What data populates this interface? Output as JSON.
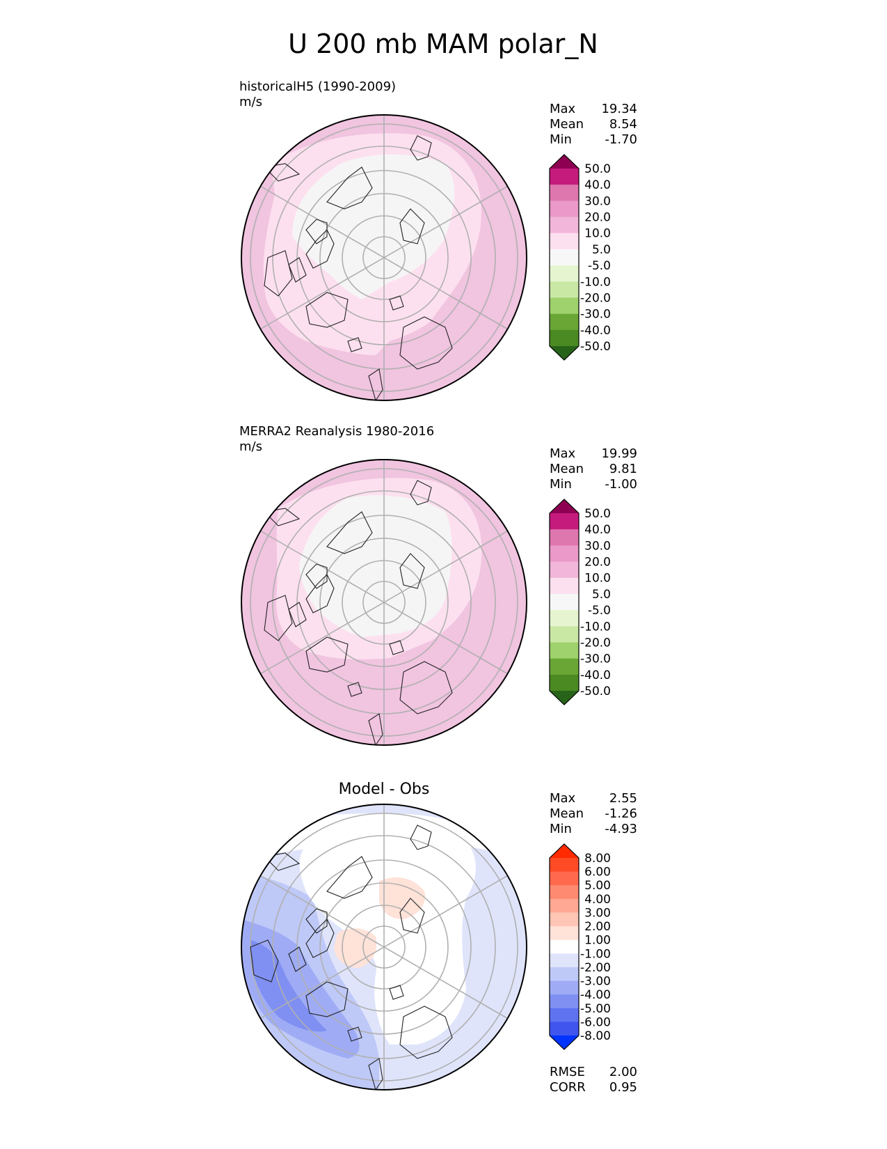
{
  "figure": {
    "title": "U 200 mb MAM polar_N"
  },
  "chart_data": [
    {
      "type": "heatmap",
      "projection": "north polar stereographic",
      "title": "",
      "subtitle": "historicalH5 (1990-2009)",
      "units": "m/s",
      "stats": [
        {
          "label": "Max",
          "value": "19.34"
        },
        {
          "label": "Mean",
          "value": "8.54"
        },
        {
          "label": "Min",
          "value": "-1.70"
        }
      ],
      "colorbar": {
        "ticks": [
          "50.0",
          "40.0",
          "30.0",
          "20.0",
          "10.0",
          "5.0",
          "-5.0",
          "-10.0",
          "-20.0",
          "-30.0",
          "-40.0",
          "-50.0"
        ],
        "colors": [
          "#8e0152",
          "#c51b7d",
          "#de77ae",
          "#ea99c8",
          "#f1b6da",
          "#fde0ef",
          "#f7f7f7",
          "#e6f5d0",
          "#c9e8a4",
          "#9fd16c",
          "#6aa636",
          "#4b8a22",
          "#276419"
        ]
      },
      "field_colors": {
        "low": "#f7f7f7",
        "mid": "#fde0ef",
        "high": "#f1c4e0"
      }
    },
    {
      "type": "heatmap",
      "projection": "north polar stereographic",
      "title": "",
      "subtitle": "MERRA2 Reanalysis 1980-2016",
      "units": "m/s",
      "stats": [
        {
          "label": "Max",
          "value": "19.99"
        },
        {
          "label": "Mean",
          "value": "9.81"
        },
        {
          "label": "Min",
          "value": "-1.00"
        }
      ],
      "colorbar": {
        "ticks": [
          "50.0",
          "40.0",
          "30.0",
          "20.0",
          "10.0",
          "5.0",
          "-5.0",
          "-10.0",
          "-20.0",
          "-30.0",
          "-40.0",
          "-50.0"
        ],
        "colors": [
          "#8e0152",
          "#c51b7d",
          "#de77ae",
          "#ea99c8",
          "#f1b6da",
          "#fde0ef",
          "#f7f7f7",
          "#e6f5d0",
          "#c9e8a4",
          "#9fd16c",
          "#6aa636",
          "#4b8a22",
          "#276419"
        ]
      },
      "field_colors": {
        "low": "#f7f7f7",
        "mid": "#fde0ef",
        "high": "#f1c4e0"
      }
    },
    {
      "type": "heatmap",
      "projection": "north polar stereographic",
      "title": "Model - Obs",
      "subtitle": "",
      "units": "",
      "stats": [
        {
          "label": "Max",
          "value": "2.55"
        },
        {
          "label": "Mean",
          "value": "-1.26"
        },
        {
          "label": "Min",
          "value": "-4.93"
        }
      ],
      "extra_stats": [
        {
          "label": "RMSE",
          "value": "2.00"
        },
        {
          "label": "CORR",
          "value": "0.95"
        }
      ],
      "colorbar": {
        "ticks": [
          "8.00",
          "6.00",
          "5.00",
          "4.00",
          "3.00",
          "2.00",
          "1.00",
          "-1.00",
          "-2.00",
          "-3.00",
          "-4.00",
          "-5.00",
          "-6.00",
          "-8.00"
        ],
        "colors": [
          "#ff2a00",
          "#ff4a26",
          "#ff6a4e",
          "#ff8a72",
          "#ffa894",
          "#ffc6b6",
          "#ffe2d8",
          "#ffffff",
          "#dfe4fb",
          "#bfc9f8",
          "#9facf5",
          "#7f8ff2",
          "#5f72f0",
          "#3f55ee",
          "#0033ff"
        ]
      },
      "field_colors": {
        "low": "#ffffff",
        "neg1": "#dfe4fb",
        "neg2": "#bfc9f8",
        "neg3": "#9facf5",
        "neg4": "#7f8ff2",
        "pos": "#ffe2d8"
      }
    }
  ]
}
